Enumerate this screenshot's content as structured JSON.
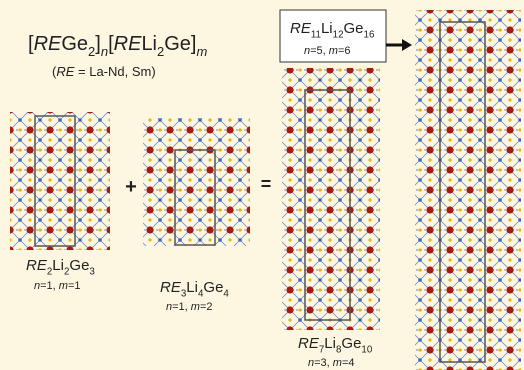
{
  "formula": {
    "parts": [
      {
        "text": "[",
        "style": "plain"
      },
      {
        "text": "RE",
        "style": "italic"
      },
      {
        "text": "Ge",
        "style": "plain"
      },
      {
        "text": "2",
        "style": "sub"
      },
      {
        "text": "]",
        "style": "plain"
      },
      {
        "text": "n",
        "style": "sub-italic"
      },
      {
        "text": "[",
        "style": "plain"
      },
      {
        "text": "RE",
        "style": "italic"
      },
      {
        "text": "Li",
        "style": "plain"
      },
      {
        "text": "2",
        "style": "sub"
      },
      {
        "text": "Ge]",
        "style": "plain"
      },
      {
        "text": "m",
        "style": "sub-italic"
      }
    ]
  },
  "note": {
    "parts": [
      {
        "text": "(",
        "style": "plain"
      },
      {
        "text": "RE",
        "style": "italic"
      },
      {
        "text": " = La-Nd, Sm)",
        "style": "plain"
      }
    ]
  },
  "plus": "+",
  "equals": "=",
  "structures": [
    {
      "name": {
        "parts": [
          {
            "text": "RE",
            "style": "italic"
          },
          {
            "text": "2",
            "style": "sub"
          },
          {
            "text": "Li",
            "style": "plain"
          },
          {
            "text": "2",
            "style": "sub"
          },
          {
            "text": "Ge",
            "style": "plain"
          },
          {
            "text": "3",
            "style": "sub"
          }
        ]
      },
      "params": {
        "parts": [
          {
            "text": "n",
            "style": "italic"
          },
          {
            "text": "=1, ",
            "style": "plain"
          },
          {
            "text": "m",
            "style": "italic"
          },
          {
            "text": "=1",
            "style": "plain"
          }
        ]
      }
    },
    {
      "name": {
        "parts": [
          {
            "text": "RE",
            "style": "italic"
          },
          {
            "text": "3",
            "style": "sub"
          },
          {
            "text": "Li",
            "style": "plain"
          },
          {
            "text": "4",
            "style": "sub"
          },
          {
            "text": "Ge",
            "style": "plain"
          },
          {
            "text": "4",
            "style": "sub"
          }
        ]
      },
      "params": {
        "parts": [
          {
            "text": "n",
            "style": "italic"
          },
          {
            "text": "=1, ",
            "style": "plain"
          },
          {
            "text": "m",
            "style": "italic"
          },
          {
            "text": "=2",
            "style": "plain"
          }
        ]
      }
    },
    {
      "name": {
        "parts": [
          {
            "text": "RE",
            "style": "italic"
          },
          {
            "text": "7",
            "style": "sub"
          },
          {
            "text": "Li",
            "style": "plain"
          },
          {
            "text": "8",
            "style": "sub"
          },
          {
            "text": "Ge",
            "style": "plain"
          },
          {
            "text": "10",
            "style": "sub"
          }
        ]
      },
      "params": {
        "parts": [
          {
            "text": "n",
            "style": "italic"
          },
          {
            "text": "=3, ",
            "style": "plain"
          },
          {
            "text": "m",
            "style": "italic"
          },
          {
            "text": "=4",
            "style": "plain"
          }
        ]
      }
    },
    {
      "name": {
        "parts": [
          {
            "text": "RE",
            "style": "italic"
          },
          {
            "text": "11",
            "style": "sub"
          },
          {
            "text": "Li",
            "style": "plain"
          },
          {
            "text": "12",
            "style": "sub"
          },
          {
            "text": "Ge",
            "style": "plain"
          },
          {
            "text": "16",
            "style": "sub"
          }
        ]
      },
      "params": {
        "parts": [
          {
            "text": "n",
            "style": "italic"
          },
          {
            "text": "=5, ",
            "style": "plain"
          },
          {
            "text": "m",
            "style": "italic"
          },
          {
            "text": "=6",
            "style": "plain"
          }
        ]
      }
    }
  ]
}
